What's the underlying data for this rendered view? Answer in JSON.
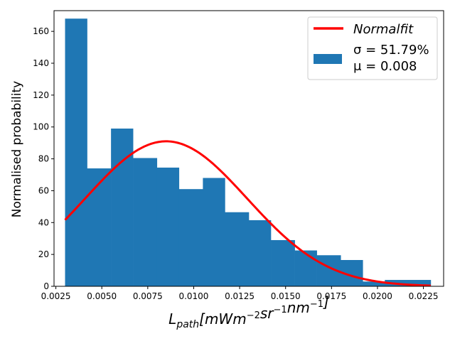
{
  "chart_data": {
    "type": "bar",
    "subtype": "histogram-with-fit",
    "xlabel": {
      "base": "L",
      "sub": "path",
      "units": [
        {
          "t": "[mWm",
          "sup": "−2"
        },
        {
          "t": "sr",
          "sup": "−1"
        },
        {
          "t": "nm",
          "sup": "−1"
        },
        {
          "t": "]",
          "sup": ""
        }
      ]
    },
    "ylabel": "Normalised probability",
    "xlim": [
      0.0024,
      0.0236
    ],
    "ylim": [
      0,
      173
    ],
    "xticks": [
      0.0025,
      0.005,
      0.0075,
      0.01,
      0.0125,
      0.015,
      0.0175,
      0.02,
      0.0225
    ],
    "xtick_labels": [
      "0.0025",
      "0.0050",
      "0.0075",
      "0.0100",
      "0.0125",
      "0.0150",
      "0.0175",
      "0.0200",
      "0.0225"
    ],
    "yticks": [
      0,
      20,
      40,
      60,
      80,
      100,
      120,
      140,
      160
    ],
    "ytick_labels": [
      "0",
      "20",
      "40",
      "60",
      "80",
      "100",
      "120",
      "140",
      "160"
    ],
    "bins": [
      {
        "x0": 0.003,
        "x1": 0.0042,
        "value": 168
      },
      {
        "x0": 0.0042,
        "x1": 0.0055,
        "value": 74
      },
      {
        "x0": 0.0055,
        "x1": 0.0067,
        "value": 99
      },
      {
        "x0": 0.0067,
        "x1": 0.008,
        "value": 80.5
      },
      {
        "x0": 0.008,
        "x1": 0.0092,
        "value": 74.5
      },
      {
        "x0": 0.0092,
        "x1": 0.0105,
        "value": 61
      },
      {
        "x0": 0.0105,
        "x1": 0.0117,
        "value": 68
      },
      {
        "x0": 0.0117,
        "x1": 0.013,
        "value": 46.5
      },
      {
        "x0": 0.013,
        "x1": 0.0142,
        "value": 41.5
      },
      {
        "x0": 0.0142,
        "x1": 0.0155,
        "value": 29
      },
      {
        "x0": 0.0155,
        "x1": 0.0167,
        "value": 22.5
      },
      {
        "x0": 0.0167,
        "x1": 0.018,
        "value": 19.5
      },
      {
        "x0": 0.018,
        "x1": 0.0192,
        "value": 16.5
      },
      {
        "x0": 0.0192,
        "x1": 0.0204,
        "value": 3
      },
      {
        "x0": 0.0204,
        "x1": 0.0217,
        "value": 4
      },
      {
        "x0": 0.0217,
        "x1": 0.0229,
        "value": 4
      }
    ],
    "fit": {
      "name": "Normalfit",
      "mean": 0.0085,
      "sd": 0.0044,
      "peak": 91,
      "x_range": [
        0.003,
        0.0229
      ]
    },
    "legend": {
      "position": "top-right",
      "fit_label": "Normalfit",
      "hist_line1": "σ = 51.79%",
      "hist_line2": "μ = 0.008"
    },
    "colors": {
      "bars": "#1f77b4",
      "fit": "#ff0000",
      "axes": "#000000"
    },
    "grid": false
  }
}
